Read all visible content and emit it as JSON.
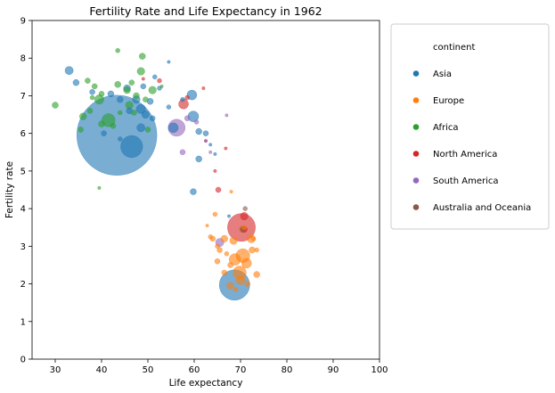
{
  "chart_data": {
    "type": "scatter",
    "title": "Fertility Rate and Life Expectancy in 1962",
    "xlabel": "Life expectancy",
    "ylabel": "Fertility rate",
    "xlim": [
      25,
      100
    ],
    "ylim": [
      0,
      9
    ],
    "xticks": [
      "30",
      "40",
      "50",
      "60",
      "70",
      "80",
      "90",
      "100"
    ],
    "yticks": [
      "0",
      "1",
      "2",
      "3",
      "4",
      "5",
      "6",
      "7",
      "8",
      "9"
    ],
    "grid": false,
    "legend": {
      "title": "continent",
      "placement": "outside-right",
      "entries": [
        {
          "label": "Asia",
          "color": "#1f77b4"
        },
        {
          "label": "Europe",
          "color": "#ff7f0e"
        },
        {
          "label": "Africa",
          "color": "#2ca02c"
        },
        {
          "label": "North America",
          "color": "#d62728"
        },
        {
          "label": "South America",
          "color": "#9467bd"
        },
        {
          "label": "Australia and Oceania",
          "color": "#8c564b"
        }
      ]
    },
    "series": [
      {
        "continent": "Asia",
        "color": "#1f77b4",
        "points": [
          [
            43.3,
            5.95,
            660
          ],
          [
            46.5,
            5.65,
            50
          ],
          [
            68.7,
            1.97,
            95
          ],
          [
            33,
            7.67,
            7
          ],
          [
            34.5,
            7.35,
            4
          ],
          [
            38,
            7.1,
            3
          ],
          [
            42,
            7.05,
            4
          ],
          [
            44,
            6.9,
            4
          ],
          [
            45.5,
            7.2,
            5
          ],
          [
            47.5,
            6.9,
            6
          ],
          [
            48.5,
            6.65,
            9
          ],
          [
            49.5,
            6.5,
            6
          ],
          [
            50.5,
            6.85,
            4
          ],
          [
            51,
            6.4,
            3
          ],
          [
            48.5,
            6.15,
            7
          ],
          [
            49,
            7.25,
            3
          ],
          [
            51.5,
            7.5,
            2
          ],
          [
            52.5,
            7.2,
            2
          ],
          [
            54.5,
            7.9,
            1
          ],
          [
            55.5,
            6.15,
            10
          ],
          [
            59.5,
            7.02,
            10
          ],
          [
            59.8,
            6.45,
            12
          ],
          [
            61,
            6.05,
            4
          ],
          [
            62.5,
            6.0,
            3
          ],
          [
            59.8,
            4.45,
            4
          ],
          [
            61,
            5.32,
            4
          ],
          [
            54.5,
            6.7,
            2
          ],
          [
            40.5,
            6.0,
            3
          ],
          [
            46,
            6.6,
            4
          ],
          [
            44,
            5.85,
            2
          ],
          [
            57.5,
            6.9,
            2
          ],
          [
            63.5,
            5.7,
            1
          ],
          [
            64.5,
            5.45,
            1
          ],
          [
            67.5,
            3.8,
            1
          ]
        ]
      },
      {
        "continent": "Europe",
        "color": "#ff7f0e",
        "points": [
          [
            70.5,
            2.75,
            20
          ],
          [
            69.8,
            2.3,
            18
          ],
          [
            68.8,
            2.65,
            14
          ],
          [
            71.3,
            2.55,
            10
          ],
          [
            70,
            2.1,
            8
          ],
          [
            72.3,
            3.2,
            7
          ],
          [
            70.5,
            3.45,
            5
          ],
          [
            68.5,
            3.15,
            6
          ],
          [
            66.5,
            3.2,
            5
          ],
          [
            67.8,
            1.95,
            5
          ],
          [
            72.5,
            2.9,
            4
          ],
          [
            73.5,
            2.25,
            4
          ],
          [
            65,
            2.6,
            3
          ],
          [
            64,
            3.2,
            3
          ],
          [
            65.5,
            2.9,
            3
          ],
          [
            66.5,
            2.3,
            3
          ],
          [
            63.5,
            3.25,
            2
          ],
          [
            64.5,
            3.85,
            2
          ],
          [
            68,
            4.45,
            1
          ],
          [
            73.5,
            2.9,
            2
          ],
          [
            67.8,
            2.5,
            3
          ],
          [
            71.5,
            2.0,
            3
          ],
          [
            69,
            1.85,
            2
          ],
          [
            62.8,
            3.55,
            1
          ],
          [
            65,
            3.0,
            2
          ],
          [
            70.8,
            3.5,
            2
          ],
          [
            72.8,
            3.2,
            2
          ],
          [
            67,
            2.8,
            2
          ]
        ]
      },
      {
        "continent": "Africa",
        "color": "#2ca02c",
        "points": [
          [
            41.5,
            6.35,
            18
          ],
          [
            39.5,
            6.9,
            9
          ],
          [
            46,
            6.75,
            6
          ],
          [
            48.5,
            7.65,
            6
          ],
          [
            51,
            7.15,
            6
          ],
          [
            36,
            6.45,
            5
          ],
          [
            30,
            6.75,
            4
          ],
          [
            43.5,
            8.2,
            2
          ],
          [
            48.8,
            8.05,
            4
          ],
          [
            35.5,
            6.1,
            3
          ],
          [
            37,
            7.4,
            3
          ],
          [
            38.5,
            7.25,
            3
          ],
          [
            40,
            7.05,
            3
          ],
          [
            43.5,
            7.3,
            4
          ],
          [
            45.5,
            7.15,
            5
          ],
          [
            47.5,
            7.0,
            4
          ],
          [
            49.5,
            6.9,
            3
          ],
          [
            37.5,
            6.6,
            3
          ],
          [
            40,
            6.25,
            4
          ],
          [
            42.5,
            6.2,
            3
          ],
          [
            50,
            6.1,
            3
          ],
          [
            44,
            6.55,
            2
          ],
          [
            46.5,
            7.35,
            3
          ],
          [
            53,
            7.25,
            1
          ],
          [
            47,
            6.55,
            3
          ],
          [
            39.5,
            4.55,
            1
          ],
          [
            38,
            6.95,
            2
          ]
        ]
      },
      {
        "continent": "North America",
        "color": "#d62728",
        "points": [
          [
            70.2,
            3.5,
            80
          ],
          [
            57.7,
            6.78,
            10
          ],
          [
            70.8,
            3.8,
            6
          ],
          [
            70.8,
            3.45,
            4
          ],
          [
            65.2,
            4.5,
            3
          ],
          [
            52.5,
            7.4,
            2
          ],
          [
            49,
            7.45,
            1
          ],
          [
            58.5,
            6.95,
            2
          ],
          [
            62,
            7.2,
            1
          ],
          [
            62.5,
            5.8,
            1
          ],
          [
            66.8,
            5.6,
            1
          ],
          [
            64.5,
            5.0,
            1
          ]
        ]
      },
      {
        "continent": "South America",
        "color": "#9467bd",
        "points": [
          [
            56.2,
            6.15,
            30
          ],
          [
            65.5,
            3.1,
            7
          ],
          [
            57.5,
            5.5,
            3
          ],
          [
            58.5,
            6.4,
            3
          ],
          [
            62.5,
            5.8,
            1
          ],
          [
            67,
            6.48,
            1
          ],
          [
            63.5,
            5.5,
            1
          ],
          [
            60.5,
            6.3,
            2
          ]
        ]
      },
      {
        "continent": "Australia and Oceania",
        "color": "#8c564b",
        "points": [
          [
            70.5,
            3.45,
            4
          ],
          [
            71,
            4.0,
            2
          ]
        ]
      }
    ]
  }
}
